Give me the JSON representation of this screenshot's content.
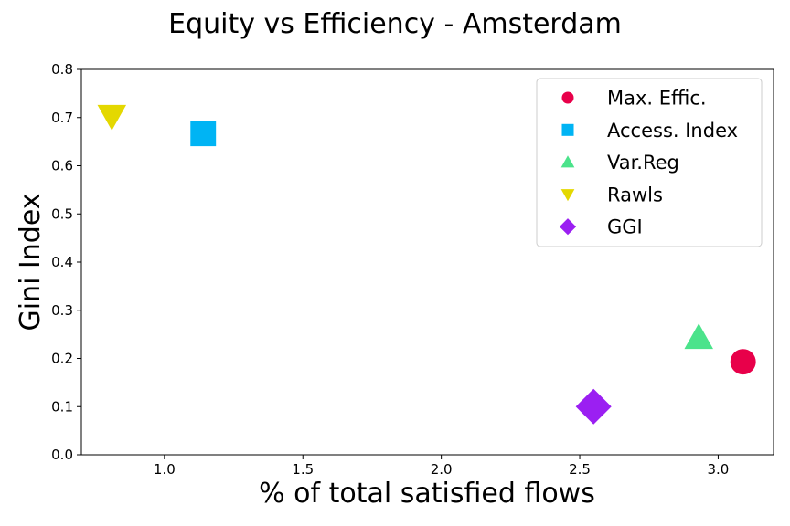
{
  "chart_data": {
    "type": "scatter",
    "title": "Equity vs Efficiency - Amsterdam",
    "xlabel": "% of total satisfied flows",
    "ylabel": "Gini Index",
    "xlim": [
      0.7,
      3.2
    ],
    "ylim": [
      0.0,
      0.8
    ],
    "xticks": [
      "1.0",
      "1.5",
      "2.0",
      "2.5",
      "3.0"
    ],
    "yticks": [
      "0.0",
      "0.1",
      "0.2",
      "0.3",
      "0.4",
      "0.5",
      "0.6",
      "0.7",
      "0.8"
    ],
    "grid": false,
    "legend_position": "top-right",
    "series": [
      {
        "name": "Max. Effic.",
        "marker": "circle",
        "color": "#e8004a",
        "x": 3.09,
        "y": 0.193
      },
      {
        "name": "Access. Index",
        "marker": "square",
        "color": "#00b4f4",
        "x": 1.14,
        "y": 0.667
      },
      {
        "name": "Var.Reg",
        "marker": "triangle-up",
        "color": "#4be38b",
        "x": 2.93,
        "y": 0.243
      },
      {
        "name": "Rawls",
        "marker": "triangle-down",
        "color": "#e4d800",
        "x": 0.81,
        "y": 0.703
      },
      {
        "name": "GGI",
        "marker": "diamond",
        "color": "#9b1ff2",
        "x": 2.55,
        "y": 0.1
      }
    ]
  }
}
